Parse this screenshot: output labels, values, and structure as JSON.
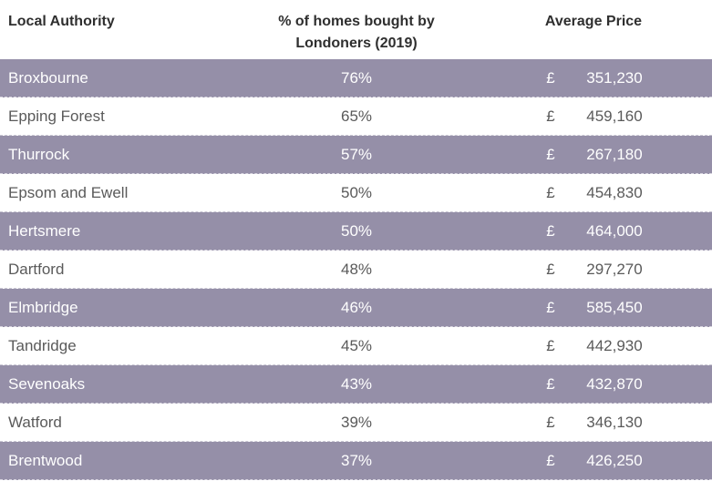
{
  "headers": {
    "authority": "Local Authority",
    "percent_line1": "% of homes bought by",
    "percent_line2": "Londoners (2019)",
    "price": "Average Price"
  },
  "currency_symbol": "£",
  "rows": [
    {
      "authority": "Broxbourne",
      "percent": "76%",
      "price": "351,230"
    },
    {
      "authority": "Epping Forest",
      "percent": "65%",
      "price": "459,160"
    },
    {
      "authority": "Thurrock",
      "percent": "57%",
      "price": "267,180"
    },
    {
      "authority": "Epsom and Ewell",
      "percent": "50%",
      "price": "454,830"
    },
    {
      "authority": "Hertsmere",
      "percent": "50%",
      "price": "464,000"
    },
    {
      "authority": "Dartford",
      "percent": "48%",
      "price": "297,270"
    },
    {
      "authority": "Elmbridge",
      "percent": "46%",
      "price": "585,450"
    },
    {
      "authority": "Tandridge",
      "percent": "45%",
      "price": "442,930"
    },
    {
      "authority": "Sevenoaks",
      "percent": "43%",
      "price": "432,870"
    },
    {
      "authority": "Watford",
      "percent": "39%",
      "price": "346,130"
    },
    {
      "authority": "Brentwood",
      "percent": "37%",
      "price": "426,250"
    }
  ]
}
